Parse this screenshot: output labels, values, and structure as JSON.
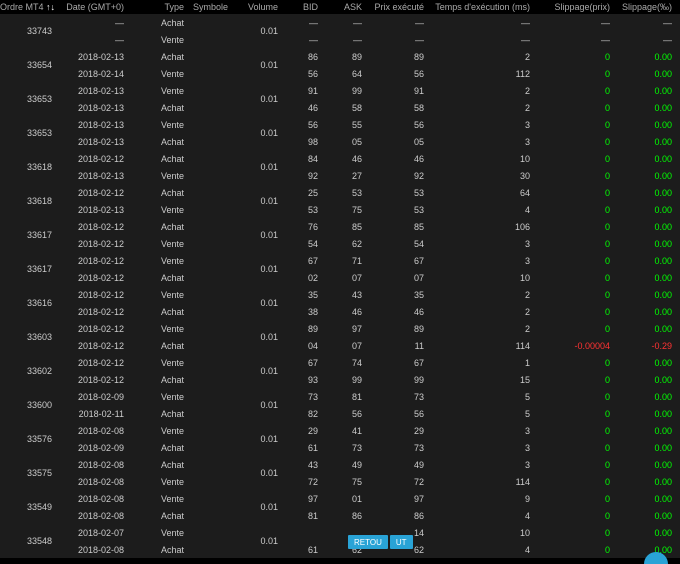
{
  "headers": {
    "ordre": "Ordre MT4",
    "sort": "↑↓",
    "date": "Date (GMT+0)",
    "type": "Type",
    "symbole": "Symbole",
    "volume": "Volume",
    "bid": "BID",
    "ask": "ASK",
    "prix": "Prix exécuté",
    "temps": "Temps d'exécution (ms)",
    "slippage_prix": "Slippage(prix)",
    "slippage_pct": "Slippage(‰)"
  },
  "buttons": {
    "retour": "RETOU",
    "ut": "UT"
  },
  "colors": {
    "background": "#000000",
    "row_bg": "#1c1c1c",
    "text": "#cccccc",
    "header": "#aaaaaa",
    "green": "#00ff00",
    "red": "#ff3333",
    "accent": "#29a3d6"
  },
  "groups": [
    {
      "ordre": "33743",
      "volume": "0.01",
      "rows": [
        {
          "date": "—",
          "type": "Achat",
          "bid": "—",
          "ask": "—",
          "prix": "—",
          "temps": "—",
          "sp": "—",
          "spp": "—",
          "sp_color": "n",
          "spp_color": "n"
        },
        {
          "date": "—",
          "type": "Vente",
          "bid": "—",
          "ask": "—",
          "prix": "—",
          "temps": "—",
          "sp": "—",
          "spp": "—",
          "sp_color": "n",
          "spp_color": "n"
        }
      ]
    },
    {
      "ordre": "33654",
      "volume": "0.01",
      "rows": [
        {
          "date": "2018-02-13",
          "type": "Achat",
          "bid": "86",
          "ask": "89",
          "prix": "89",
          "temps": "2",
          "sp": "0",
          "spp": "0.00",
          "sp_color": "g",
          "spp_color": "g"
        },
        {
          "date": "2018-02-14",
          "type": "Vente",
          "bid": "56",
          "ask": "64",
          "prix": "56",
          "temps": "112",
          "sp": "0",
          "spp": "0.00",
          "sp_color": "g",
          "spp_color": "g"
        }
      ]
    },
    {
      "ordre": "33653",
      "volume": "0.01",
      "rows": [
        {
          "date": "2018-02-13",
          "type": "Vente",
          "bid": "91",
          "ask": "99",
          "prix": "91",
          "temps": "2",
          "sp": "0",
          "spp": "0.00",
          "sp_color": "g",
          "spp_color": "g"
        },
        {
          "date": "2018-02-13",
          "type": "Achat",
          "bid": "46",
          "ask": "58",
          "prix": "58",
          "temps": "2",
          "sp": "0",
          "spp": "0.00",
          "sp_color": "g",
          "spp_color": "g"
        }
      ]
    },
    {
      "ordre": "33653",
      "volume": "0.01",
      "rows": [
        {
          "date": "2018-02-13",
          "type": "Vente",
          "bid": "56",
          "ask": "55",
          "prix": "56",
          "temps": "3",
          "sp": "0",
          "spp": "0.00",
          "sp_color": "g",
          "spp_color": "g"
        },
        {
          "date": "2018-02-13",
          "type": "Achat",
          "bid": "98",
          "ask": "05",
          "prix": "05",
          "temps": "3",
          "sp": "0",
          "spp": "0.00",
          "sp_color": "g",
          "spp_color": "g"
        }
      ]
    },
    {
      "ordre": "33618",
      "volume": "0.01",
      "rows": [
        {
          "date": "2018-02-12",
          "type": "Achat",
          "bid": "84",
          "ask": "46",
          "prix": "46",
          "temps": "10",
          "sp": "0",
          "spp": "0.00",
          "sp_color": "g",
          "spp_color": "g"
        },
        {
          "date": "2018-02-13",
          "type": "Vente",
          "bid": "92",
          "ask": "27",
          "prix": "92",
          "temps": "30",
          "sp": "0",
          "spp": "0.00",
          "sp_color": "g",
          "spp_color": "g"
        }
      ]
    },
    {
      "ordre": "33618",
      "volume": "0.01",
      "rows": [
        {
          "date": "2018-02-12",
          "type": "Achat",
          "bid": "25",
          "ask": "53",
          "prix": "53",
          "temps": "64",
          "sp": "0",
          "spp": "0.00",
          "sp_color": "g",
          "spp_color": "g"
        },
        {
          "date": "2018-02-13",
          "type": "Vente",
          "bid": "53",
          "ask": "75",
          "prix": "53",
          "temps": "4",
          "sp": "0",
          "spp": "0.00",
          "sp_color": "g",
          "spp_color": "g"
        }
      ]
    },
    {
      "ordre": "33617",
      "volume": "0.01",
      "rows": [
        {
          "date": "2018-02-12",
          "type": "Achat",
          "bid": "76",
          "ask": "85",
          "prix": "85",
          "temps": "106",
          "sp": "0",
          "spp": "0.00",
          "sp_color": "g",
          "spp_color": "g"
        },
        {
          "date": "2018-02-12",
          "type": "Vente",
          "bid": "54",
          "ask": "62",
          "prix": "54",
          "temps": "3",
          "sp": "0",
          "spp": "0.00",
          "sp_color": "g",
          "spp_color": "g"
        }
      ]
    },
    {
      "ordre": "33617",
      "volume": "0.01",
      "rows": [
        {
          "date": "2018-02-12",
          "type": "Vente",
          "bid": "67",
          "ask": "71",
          "prix": "67",
          "temps": "3",
          "sp": "0",
          "spp": "0.00",
          "sp_color": "g",
          "spp_color": "g"
        },
        {
          "date": "2018-02-12",
          "type": "Achat",
          "bid": "02",
          "ask": "07",
          "prix": "07",
          "temps": "10",
          "sp": "0",
          "spp": "0.00",
          "sp_color": "g",
          "spp_color": "g"
        }
      ]
    },
    {
      "ordre": "33616",
      "volume": "0.01",
      "rows": [
        {
          "date": "2018-02-12",
          "type": "Vente",
          "bid": "35",
          "ask": "43",
          "prix": "35",
          "temps": "2",
          "sp": "0",
          "spp": "0.00",
          "sp_color": "g",
          "spp_color": "g"
        },
        {
          "date": "2018-02-12",
          "type": "Achat",
          "bid": "38",
          "ask": "46",
          "prix": "46",
          "temps": "2",
          "sp": "0",
          "spp": "0.00",
          "sp_color": "g",
          "spp_color": "g"
        }
      ]
    },
    {
      "ordre": "33603",
      "volume": "0.01",
      "rows": [
        {
          "date": "2018-02-12",
          "type": "Vente",
          "bid": "89",
          "ask": "97",
          "prix": "89",
          "temps": "2",
          "sp": "0",
          "spp": "0.00",
          "sp_color": "g",
          "spp_color": "g"
        },
        {
          "date": "2018-02-12",
          "type": "Achat",
          "bid": "04",
          "ask": "07",
          "prix": "11",
          "temps": "114",
          "sp": "-0.00004",
          "spp": "-0.29",
          "sp_color": "r",
          "spp_color": "r"
        }
      ]
    },
    {
      "ordre": "33602",
      "volume": "0.01",
      "rows": [
        {
          "date": "2018-02-12",
          "type": "Vente",
          "bid": "67",
          "ask": "74",
          "prix": "67",
          "temps": "1",
          "sp": "0",
          "spp": "0.00",
          "sp_color": "g",
          "spp_color": "g"
        },
        {
          "date": "2018-02-12",
          "type": "Achat",
          "bid": "93",
          "ask": "99",
          "prix": "99",
          "temps": "15",
          "sp": "0",
          "spp": "0.00",
          "sp_color": "g",
          "spp_color": "g"
        }
      ]
    },
    {
      "ordre": "33600",
      "volume": "0.01",
      "rows": [
        {
          "date": "2018-02-09",
          "type": "Vente",
          "bid": "73",
          "ask": "81",
          "prix": "73",
          "temps": "5",
          "sp": "0",
          "spp": "0.00",
          "sp_color": "g",
          "spp_color": "g"
        },
        {
          "date": "2018-02-11",
          "type": "Achat",
          "bid": "82",
          "ask": "56",
          "prix": "56",
          "temps": "5",
          "sp": "0",
          "spp": "0.00",
          "sp_color": "g",
          "spp_color": "g"
        }
      ]
    },
    {
      "ordre": "33576",
      "volume": "0.01",
      "rows": [
        {
          "date": "2018-02-08",
          "type": "Vente",
          "bid": "29",
          "ask": "41",
          "prix": "29",
          "temps": "3",
          "sp": "0",
          "spp": "0.00",
          "sp_color": "g",
          "spp_color": "g"
        },
        {
          "date": "2018-02-09",
          "type": "Achat",
          "bid": "61",
          "ask": "73",
          "prix": "73",
          "temps": "3",
          "sp": "0",
          "spp": "0.00",
          "sp_color": "g",
          "spp_color": "g"
        }
      ]
    },
    {
      "ordre": "33575",
      "volume": "0.01",
      "rows": [
        {
          "date": "2018-02-08",
          "type": "Achat",
          "bid": "43",
          "ask": "49",
          "prix": "49",
          "temps": "3",
          "sp": "0",
          "spp": "0.00",
          "sp_color": "g",
          "spp_color": "g"
        },
        {
          "date": "2018-02-08",
          "type": "Vente",
          "bid": "72",
          "ask": "75",
          "prix": "72",
          "temps": "114",
          "sp": "0",
          "spp": "0.00",
          "sp_color": "g",
          "spp_color": "g"
        }
      ]
    },
    {
      "ordre": "33549",
      "volume": "0.01",
      "rows": [
        {
          "date": "2018-02-08",
          "type": "Vente",
          "bid": "97",
          "ask": "01",
          "prix": "97",
          "temps": "9",
          "sp": "0",
          "spp": "0.00",
          "sp_color": "g",
          "spp_color": "g"
        },
        {
          "date": "2018-02-08",
          "type": "Achat",
          "bid": "81",
          "ask": "86",
          "prix": "86",
          "temps": "4",
          "sp": "0",
          "spp": "0.00",
          "sp_color": "g",
          "spp_color": "g"
        }
      ]
    },
    {
      "ordre": "33548",
      "volume": "0.01",
      "rows": [
        {
          "date": "2018-02-07",
          "type": "Vente",
          "bid": "",
          "ask": "",
          "prix": "14",
          "temps": "10",
          "sp": "0",
          "spp": "0.00",
          "sp_color": "g",
          "spp_color": "g"
        },
        {
          "date": "2018-02-08",
          "type": "Achat",
          "bid": "61",
          "ask": "62",
          "prix": "62",
          "temps": "4",
          "sp": "0",
          "spp": "0.00",
          "sp_color": "g",
          "spp_color": "g"
        }
      ]
    }
  ]
}
